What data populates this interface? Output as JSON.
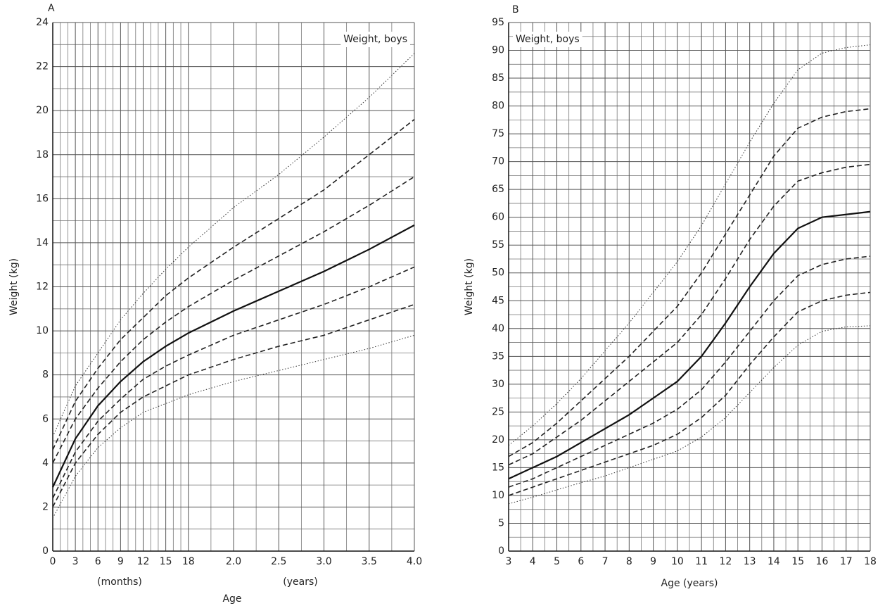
{
  "chart_data": [
    {
      "type": "line",
      "panel_label": "A",
      "annotation": "Weight, boys",
      "ylabel": "Weight (kg)",
      "xlabel": "Age",
      "xlabel_notes": [
        "(months)",
        "(years)"
      ],
      "x": [
        0,
        3,
        6,
        9,
        12,
        15,
        18,
        24,
        30,
        36,
        42,
        48
      ],
      "xlim": [
        0,
        48
      ],
      "ylim": [
        0,
        24
      ],
      "xticks": [
        0,
        3,
        6,
        9,
        12,
        15,
        18,
        {
          "value": 24,
          "label": "2.0"
        },
        {
          "value": 30,
          "label": "2.5"
        },
        {
          "value": 36,
          "label": "3.0"
        },
        {
          "value": 42,
          "label": "3.5"
        },
        {
          "value": 48,
          "label": "4.0"
        }
      ],
      "yticks": [
        0,
        2,
        4,
        6,
        8,
        10,
        12,
        14,
        16,
        18,
        20,
        22,
        24
      ],
      "xgrid": [
        1,
        2,
        4,
        5,
        7,
        8,
        10,
        11,
        13,
        14,
        16,
        17,
        21,
        27,
        33,
        39,
        45
      ],
      "ygrid": [
        1,
        3,
        5,
        7,
        9,
        11,
        13,
        15,
        17,
        19,
        21,
        23
      ],
      "grid": true,
      "series": [
        {
          "style": "dotted",
          "color": "#333333",
          "values": [
            5.2,
            7.5,
            9.0,
            10.5,
            11.7,
            12.8,
            13.8,
            15.6,
            17.1,
            18.8,
            20.6,
            22.6
          ]
        },
        {
          "style": "dashed",
          "color": "#222222",
          "values": [
            4.6,
            6.8,
            8.3,
            9.6,
            10.6,
            11.6,
            12.4,
            13.8,
            15.1,
            16.4,
            18.0,
            19.6
          ]
        },
        {
          "style": "dashed",
          "color": "#222222",
          "values": [
            4.0,
            6.0,
            7.4,
            8.6,
            9.6,
            10.4,
            11.1,
            12.3,
            13.4,
            14.5,
            15.7,
            17.0
          ]
        },
        {
          "style": "solid",
          "color": "#111111",
          "values": [
            2.9,
            5.1,
            6.6,
            7.7,
            8.6,
            9.3,
            9.9,
            10.9,
            11.8,
            12.7,
            13.7,
            14.8
          ]
        },
        {
          "style": "dashed",
          "color": "#222222",
          "values": [
            2.4,
            4.5,
            5.9,
            6.9,
            7.8,
            8.4,
            8.9,
            9.8,
            10.5,
            11.2,
            12.0,
            12.9
          ]
        },
        {
          "style": "dashed",
          "color": "#222222",
          "values": [
            2.0,
            4.0,
            5.3,
            6.3,
            7.0,
            7.5,
            8.0,
            8.7,
            9.3,
            9.8,
            10.5,
            11.2
          ]
        },
        {
          "style": "dotted",
          "color": "#333333",
          "values": [
            1.5,
            3.4,
            4.7,
            5.6,
            6.3,
            6.7,
            7.1,
            7.7,
            8.2,
            8.7,
            9.2,
            9.8
          ]
        }
      ]
    },
    {
      "type": "line",
      "panel_label": "B",
      "annotation": "Weight, boys",
      "ylabel": "Weight (kg)",
      "xlabel": "Age (years)",
      "x": [
        3,
        4,
        5,
        6,
        7,
        8,
        9,
        10,
        11,
        12,
        13,
        14,
        15,
        16,
        17,
        18
      ],
      "xlim": [
        3,
        18
      ],
      "ylim": [
        0,
        95
      ],
      "xticks": [
        3,
        4,
        5,
        6,
        7,
        8,
        9,
        10,
        11,
        12,
        13,
        14,
        15,
        16,
        17,
        18
      ],
      "yticks": [
        0,
        5,
        10,
        15,
        20,
        25,
        30,
        35,
        40,
        45,
        50,
        55,
        60,
        65,
        70,
        75,
        80,
        85,
        90,
        95
      ],
      "xgrid": [
        3.5,
        4.5,
        5.5,
        6.5,
        7.5,
        8.5,
        9.5,
        10.5,
        11.5,
        12.5,
        13.5,
        14.5,
        15.5,
        16.5,
        17.5
      ],
      "ygrid": [
        2.5,
        7.5,
        12.5,
        17.5,
        22.5,
        27.5,
        32.5,
        37.5,
        42.5,
        47.5,
        52.5,
        57.5,
        62.5,
        67.5,
        72.5,
        77.5,
        82.5,
        87.5,
        92.5
      ],
      "grid": true,
      "series": [
        {
          "style": "dotted",
          "color": "#333333",
          "values": [
            19,
            22.5,
            26.5,
            31,
            36,
            41,
            46.5,
            52,
            58.5,
            66,
            73.5,
            80.5,
            86.5,
            89.5,
            90.5,
            91
          ]
        },
        {
          "style": "dashed",
          "color": "#222222",
          "values": [
            17,
            19.5,
            23,
            27,
            31,
            35,
            39.5,
            44,
            50,
            57,
            64,
            71,
            76,
            78,
            79,
            79.5
          ]
        },
        {
          "style": "dashed",
          "color": "#222222",
          "values": [
            15.5,
            17.5,
            20.5,
            23.5,
            27,
            30.5,
            34,
            37.5,
            42.5,
            49,
            56,
            62,
            66.5,
            68,
            69,
            69.5
          ]
        },
        {
          "style": "solid",
          "color": "#111111",
          "values": [
            13,
            15,
            17,
            19.5,
            22,
            24.5,
            27.5,
            30.5,
            35,
            41,
            47.5,
            53.5,
            58,
            60,
            60.5,
            61
          ]
        },
        {
          "style": "dashed",
          "color": "#222222",
          "values": [
            11.5,
            13,
            15,
            17,
            19,
            21,
            23,
            25.5,
            29,
            34,
            39.5,
            45,
            49.5,
            51.5,
            52.5,
            53
          ]
        },
        {
          "style": "dashed",
          "color": "#222222",
          "values": [
            10,
            11.5,
            13,
            14.5,
            16,
            17.5,
            19,
            21,
            24,
            28,
            33.5,
            38.5,
            43,
            45,
            46,
            46.5
          ]
        },
        {
          "style": "dotted",
          "color": "#333333",
          "values": [
            8.5,
            9.7,
            11,
            12.3,
            13.5,
            15,
            16.5,
            18,
            20.5,
            24,
            28.5,
            33,
            37,
            39.5,
            40.3,
            40.5
          ]
        }
      ]
    }
  ]
}
